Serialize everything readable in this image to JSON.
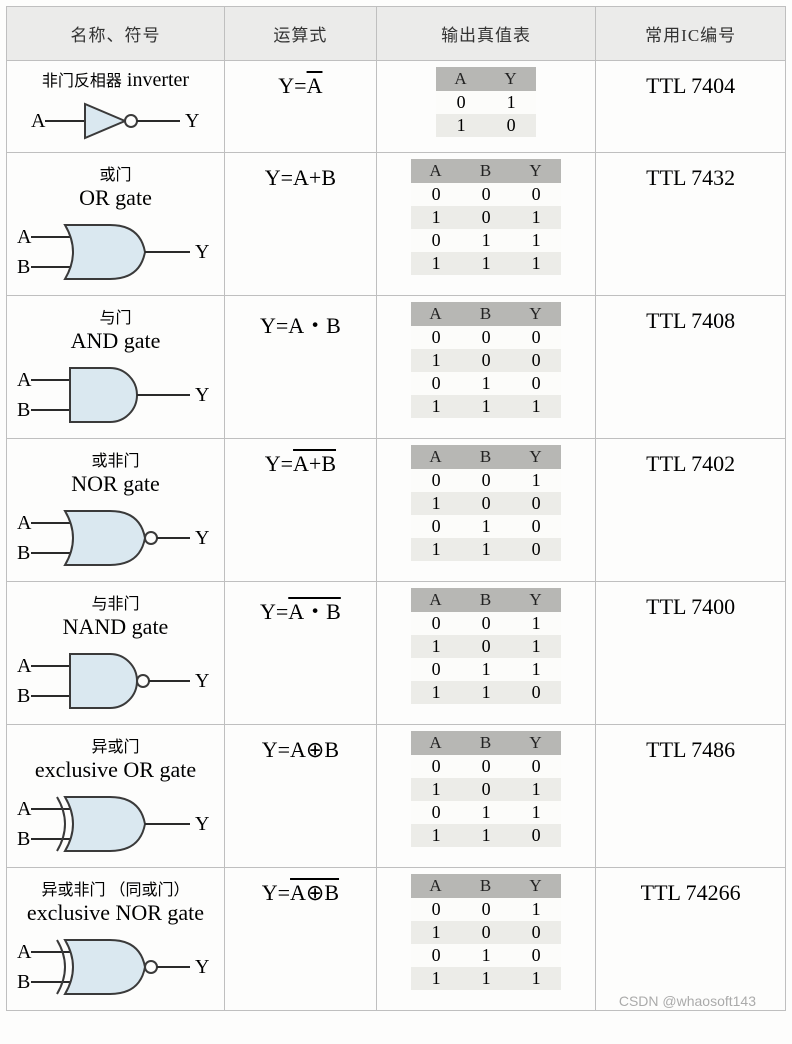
{
  "headers": {
    "name": "名称、符号",
    "expr": "运算式",
    "truth": "输出真值表",
    "ic": "常用IC编号"
  },
  "colors": {
    "gate_fill": "#dae8f0",
    "gate_stroke": "#3a3a3a",
    "wire": "#2a2a2a",
    "header_bg": "#ebebea",
    "tt_header_bg": "#b7b7b4",
    "tt_alt_bg": "#ecece8"
  },
  "gates": [
    {
      "id": "not",
      "title_cn_prefix": "非门反相器",
      "title_en": "inverter",
      "inline_title": true,
      "inputs": [
        "A"
      ],
      "output": "Y",
      "expr_html": "Y=<span class='overline'>A</span>",
      "truth": {
        "cols": [
          "A",
          "Y"
        ],
        "rows": [
          [
            "0",
            "1"
          ],
          [
            "1",
            "0"
          ]
        ]
      },
      "ic": "TTL 7404",
      "svg_type": "not"
    },
    {
      "id": "or",
      "title_cn": "或门",
      "title_en": "OR gate",
      "inputs": [
        "A",
        "B"
      ],
      "output": "Y",
      "expr_html": "Y=A+B",
      "truth": {
        "cols": [
          "A",
          "B",
          "Y"
        ],
        "rows": [
          [
            "0",
            "0",
            "0"
          ],
          [
            "1",
            "0",
            "1"
          ],
          [
            "0",
            "1",
            "1"
          ],
          [
            "1",
            "1",
            "1"
          ]
        ]
      },
      "ic": "TTL 7432",
      "svg_type": "or"
    },
    {
      "id": "and",
      "title_cn": "与门",
      "title_en": "AND gate",
      "inputs": [
        "A",
        "B"
      ],
      "output": "Y",
      "expr_html": "Y=A・B",
      "truth": {
        "cols": [
          "A",
          "B",
          "Y"
        ],
        "rows": [
          [
            "0",
            "0",
            "0"
          ],
          [
            "1",
            "0",
            "0"
          ],
          [
            "0",
            "1",
            "0"
          ],
          [
            "1",
            "1",
            "1"
          ]
        ]
      },
      "ic": "TTL 7408",
      "svg_type": "and"
    },
    {
      "id": "nor",
      "title_cn": "或非门",
      "title_en": "NOR gate",
      "inputs": [
        "A",
        "B"
      ],
      "output": "Y",
      "expr_html": "Y=<span class='overline'>A+B</span>",
      "truth": {
        "cols": [
          "A",
          "B",
          "Y"
        ],
        "rows": [
          [
            "0",
            "0",
            "1"
          ],
          [
            "1",
            "0",
            "0"
          ],
          [
            "0",
            "1",
            "0"
          ],
          [
            "1",
            "1",
            "0"
          ]
        ]
      },
      "ic": "TTL 7402",
      "svg_type": "nor"
    },
    {
      "id": "nand",
      "title_cn": "与非门",
      "title_en": "NAND gate",
      "inputs": [
        "A",
        "B"
      ],
      "output": "Y",
      "expr_html": "Y=<span class='overline'>A・B</span>",
      "truth": {
        "cols": [
          "A",
          "B",
          "Y"
        ],
        "rows": [
          [
            "0",
            "0",
            "1"
          ],
          [
            "1",
            "0",
            "1"
          ],
          [
            "0",
            "1",
            "1"
          ],
          [
            "1",
            "1",
            "0"
          ]
        ]
      },
      "ic": "TTL 7400",
      "svg_type": "nand"
    },
    {
      "id": "xor",
      "title_cn": "异或门",
      "title_en": "exclusive OR gate",
      "inputs": [
        "A",
        "B"
      ],
      "output": "Y",
      "expr_html": "Y=A⊕B",
      "truth": {
        "cols": [
          "A",
          "B",
          "Y"
        ],
        "rows": [
          [
            "0",
            "0",
            "0"
          ],
          [
            "1",
            "0",
            "1"
          ],
          [
            "0",
            "1",
            "1"
          ],
          [
            "1",
            "1",
            "0"
          ]
        ]
      },
      "ic": "TTL 7486",
      "svg_type": "xor"
    },
    {
      "id": "xnor",
      "title_cn": "异或非门 （同或门）",
      "title_en": "exclusive NOR gate",
      "inputs": [
        "A",
        "B"
      ],
      "output": "Y",
      "expr_html": "Y=<span class='overline'>A⊕B</span>",
      "truth": {
        "cols": [
          "A",
          "B",
          "Y"
        ],
        "rows": [
          [
            "0",
            "0",
            "1"
          ],
          [
            "1",
            "0",
            "0"
          ],
          [
            "0",
            "1",
            "0"
          ],
          [
            "1",
            "1",
            "1"
          ]
        ]
      },
      "ic": "TTL 74266",
      "svg_type": "xnor"
    }
  ],
  "watermark": "CSDN @whaosoft143"
}
